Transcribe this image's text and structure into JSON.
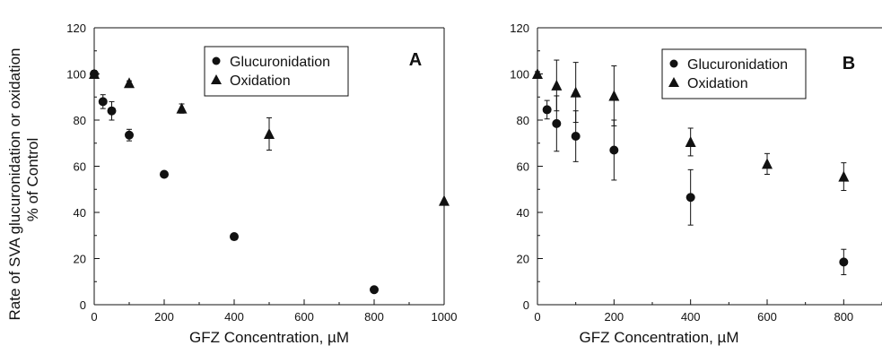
{
  "chart_data": [
    {
      "panel": "A",
      "type": "scatter",
      "ylabel_line1": "Rate of SVA glucuronidation or oxidation",
      "ylabel_line2": "% of Control",
      "xlabel": "GFZ Concentration, µM",
      "xlim": [
        0,
        1000
      ],
      "ylim": [
        0,
        120
      ],
      "xticks": [
        0,
        200,
        400,
        600,
        800,
        1000
      ],
      "yticks": [
        0,
        20,
        40,
        60,
        80,
        100,
        120
      ],
      "legend_position": "top-right",
      "series": [
        {
          "name": "Glucuronidation",
          "marker": "circle",
          "points": [
            {
              "x": 0,
              "y": 100,
              "err": 1.5
            },
            {
              "x": 25,
              "y": 88,
              "err": 3
            },
            {
              "x": 50,
              "y": 84,
              "err": 4
            },
            {
              "x": 100,
              "y": 73.5,
              "err": 2.5
            },
            {
              "x": 200,
              "y": 56.5,
              "err": 1
            },
            {
              "x": 400,
              "y": 29.5,
              "err": 0.5
            },
            {
              "x": 800,
              "y": 6.5,
              "err": 0.5
            }
          ]
        },
        {
          "name": "Oxidation",
          "marker": "triangle",
          "points": [
            {
              "x": 0,
              "y": 100,
              "err": 1
            },
            {
              "x": 100,
              "y": 96,
              "err": 1
            },
            {
              "x": 250,
              "y": 85,
              "err": 2
            },
            {
              "x": 500,
              "y": 74,
              "err": 7
            },
            {
              "x": 1000,
              "y": 45,
              "err": 0.5
            }
          ]
        }
      ]
    },
    {
      "panel": "B",
      "type": "scatter",
      "xlabel": "GFZ Concentration, µM",
      "xlim": [
        0,
        900
      ],
      "ylim": [
        0,
        120
      ],
      "xticks": [
        0,
        200,
        400,
        600,
        800
      ],
      "yticks": [
        0,
        20,
        40,
        60,
        80,
        100,
        120
      ],
      "legend_position": "top-right",
      "series": [
        {
          "name": "Glucuronidation",
          "marker": "circle",
          "points": [
            {
              "x": 25,
              "y": 84.5,
              "err": 4
            },
            {
              "x": 50,
              "y": 78.5,
              "err": 12
            },
            {
              "x": 100,
              "y": 73,
              "err": 11
            },
            {
              "x": 200,
              "y": 67,
              "err": 13
            },
            {
              "x": 400,
              "y": 46.5,
              "err": 12
            },
            {
              "x": 800,
              "y": 18.5,
              "err": 5.5
            }
          ]
        },
        {
          "name": "Oxidation",
          "marker": "triangle",
          "points": [
            {
              "x": 0,
              "y": 100,
              "err": 1
            },
            {
              "x": 50,
              "y": 95,
              "err": 11
            },
            {
              "x": 100,
              "y": 92,
              "err": 13
            },
            {
              "x": 200,
              "y": 90.5,
              "err": 13
            },
            {
              "x": 400,
              "y": 70.5,
              "err": 6
            },
            {
              "x": 600,
              "y": 61,
              "err": 4.5
            },
            {
              "x": 800,
              "y": 55.5,
              "err": 6
            }
          ]
        }
      ]
    }
  ]
}
